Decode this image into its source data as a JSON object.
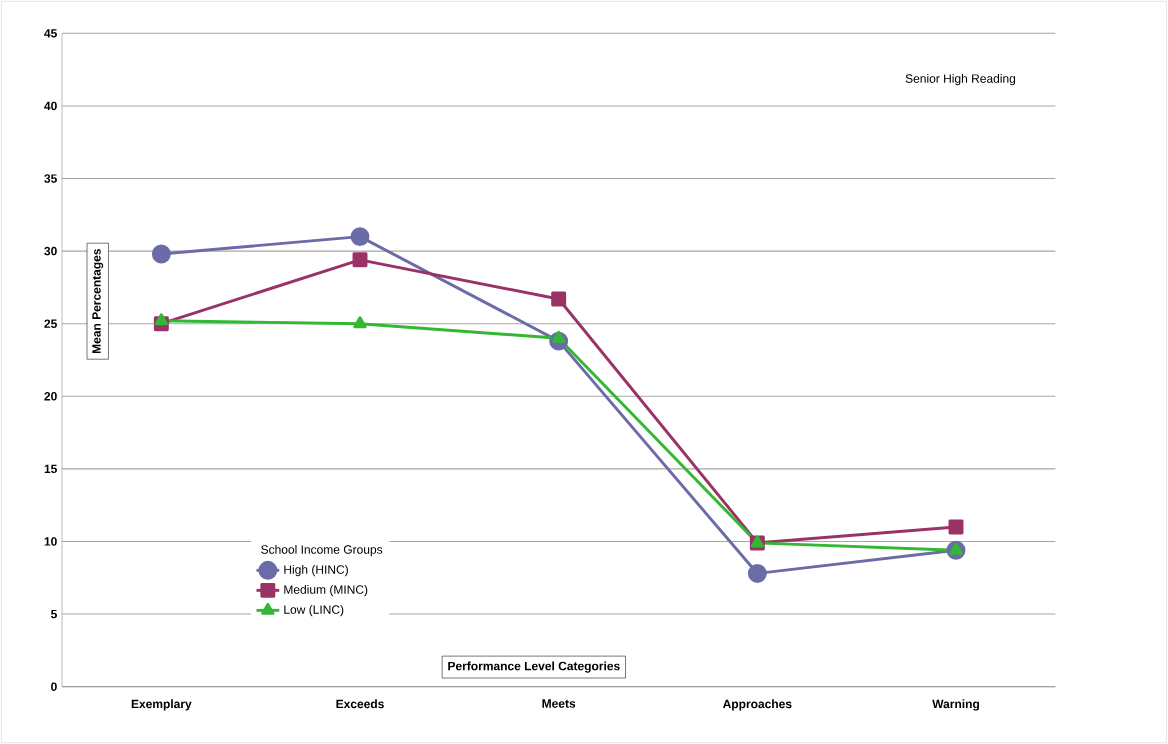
{
  "chart_data": {
    "type": "line",
    "title": "Senior High Reading",
    "xlabel": "Performance Level Categories",
    "ylabel": "Mean Percentages",
    "legend_title": "School Income Groups",
    "categories": [
      "Exemplary",
      "Exceeds",
      "Meets",
      "Approaches",
      "Warning"
    ],
    "series": [
      {
        "name": "High (HINC)",
        "color": "#6b6ba8",
        "marker": "circle",
        "values": [
          29.8,
          31.0,
          23.8,
          7.8,
          9.4
        ]
      },
      {
        "name": "Medium (MINC)",
        "color": "#993366",
        "marker": "square",
        "values": [
          25.0,
          29.4,
          26.7,
          9.9,
          11.0
        ]
      },
      {
        "name": "Low (LINC)",
        "color": "#33b833",
        "marker": "triangle",
        "values": [
          25.2,
          25.0,
          24.0,
          9.9,
          9.4
        ]
      }
    ],
    "ylim": [
      0,
      45
    ],
    "yticks": [
      0,
      5,
      10,
      15,
      20,
      25,
      30,
      35,
      40,
      45
    ],
    "grid": "y",
    "legend": "bottom left",
    "line_style": "solid"
  }
}
